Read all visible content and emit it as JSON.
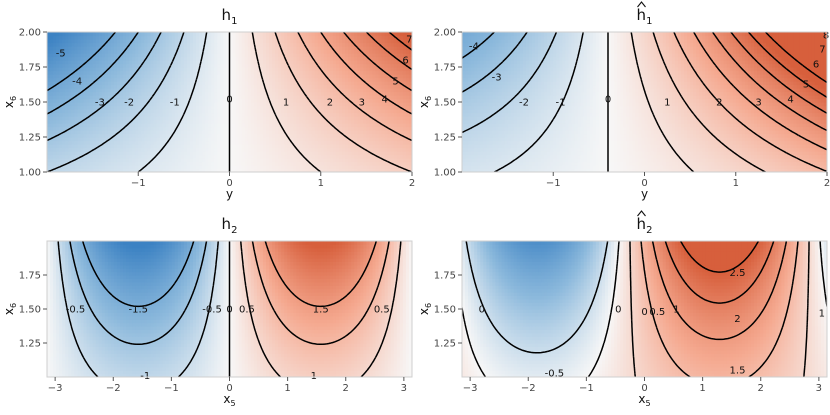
{
  "chart_data": [
    {
      "type": "heatmap",
      "title": "h",
      "title_sub": "1",
      "title_hat": false,
      "func": "h1_true",
      "xlabel": "y",
      "xlabel_sub": "",
      "ylabel": "x",
      "ylabel_sub": "6",
      "xlim": [
        -2,
        2
      ],
      "ylim": [
        1,
        2
      ],
      "xticks": [
        -1,
        0,
        1,
        2
      ],
      "xtick_labels": [
        "−1",
        "0",
        "1",
        "2"
      ],
      "yticks": [
        1,
        1.25,
        1.5,
        1.75,
        2
      ],
      "ytick_labels": [
        "1.00",
        "1.25",
        "1.50",
        "1.75",
        "2.00"
      ],
      "contour_levels": [
        -5,
        -4,
        -3,
        -2,
        -1,
        0,
        1,
        2,
        3,
        4,
        5,
        6,
        7
      ],
      "contour_label_positions": [
        {
          "text": "-5",
          "x": -1.85,
          "y": 1.85
        },
        {
          "text": "-4",
          "x": -1.67,
          "y": 1.65
        },
        {
          "text": "-3",
          "x": -1.42,
          "y": 1.5
        },
        {
          "text": "-2",
          "x": -1.1,
          "y": 1.5
        },
        {
          "text": "-1",
          "x": -0.6,
          "y": 1.5
        },
        {
          "text": "0",
          "x": 0,
          "y": 1.52
        },
        {
          "text": "1",
          "x": 0.62,
          "y": 1.5
        },
        {
          "text": "2",
          "x": 1.1,
          "y": 1.5
        },
        {
          "text": "3",
          "x": 1.45,
          "y": 1.5
        },
        {
          "text": "4",
          "x": 1.7,
          "y": 1.52
        },
        {
          "text": "5",
          "x": 1.82,
          "y": 1.65
        },
        {
          "text": "6",
          "x": 1.93,
          "y": 1.8
        },
        {
          "text": "7",
          "x": 1.97,
          "y": 1.95
        }
      ],
      "color_range": [
        -7.5,
        7.5
      ]
    },
    {
      "type": "heatmap",
      "title": "h",
      "title_sub": "1",
      "title_hat": true,
      "func": "h1_hat",
      "xlabel": "y",
      "xlabel_sub": "",
      "ylabel": "x",
      "ylabel_sub": "6",
      "xlim": [
        -2,
        2
      ],
      "ylim": [
        1,
        2
      ],
      "xticks": [
        -1,
        0,
        1,
        2
      ],
      "xtick_labels": [
        "−1",
        "0",
        "1",
        "2"
      ],
      "yticks": [
        1,
        1.25,
        1.5,
        1.75,
        2
      ],
      "ytick_labels": [
        "1.00",
        "1.25",
        "1.50",
        "1.75",
        "2.00"
      ],
      "contour_levels": [
        -4,
        -3,
        -2,
        -1,
        0,
        1,
        2,
        3,
        4,
        5,
        6,
        7,
        8
      ],
      "contour_label_positions": [
        {
          "text": "-4",
          "x": -1.87,
          "y": 1.9
        },
        {
          "text": "-3",
          "x": -1.62,
          "y": 1.68
        },
        {
          "text": "-2",
          "x": -1.32,
          "y": 1.5
        },
        {
          "text": "-1",
          "x": -0.92,
          "y": 1.5
        },
        {
          "text": "0",
          "x": -0.4,
          "y": 1.52
        },
        {
          "text": "1",
          "x": 0.25,
          "y": 1.5
        },
        {
          "text": "2",
          "x": 0.82,
          "y": 1.5
        },
        {
          "text": "3",
          "x": 1.25,
          "y": 1.5
        },
        {
          "text": "4",
          "x": 1.6,
          "y": 1.52
        },
        {
          "text": "5",
          "x": 1.77,
          "y": 1.63
        },
        {
          "text": "6",
          "x": 1.88,
          "y": 1.77
        },
        {
          "text": "7",
          "x": 1.95,
          "y": 1.88
        },
        {
          "text": "8",
          "x": 1.99,
          "y": 1.98
        }
      ],
      "color_range": [
        -7.5,
        7.5
      ]
    },
    {
      "type": "heatmap",
      "title": "h",
      "title_sub": "2",
      "title_hat": false,
      "func": "h2_true",
      "xlabel": "x",
      "xlabel_sub": "5",
      "ylabel": "x",
      "ylabel_sub": "6",
      "xlim": [
        -3.14,
        3.14
      ],
      "ylim": [
        1,
        2
      ],
      "xticks": [
        -3,
        -2,
        -1,
        0,
        1,
        2,
        3
      ],
      "xtick_labels": [
        "−3",
        "−2",
        "−1",
        "0",
        "1",
        "2",
        "3"
      ],
      "yticks": [
        1.25,
        1.5,
        1.75
      ],
      "ytick_labels": [
        "1.25",
        "1.50",
        "1.75"
      ],
      "contour_levels": [
        -1.5,
        -1,
        -0.5,
        0,
        0.5,
        1,
        1.5
      ],
      "contour_label_positions": [
        {
          "text": "-0.5",
          "x": -2.65,
          "y": 1.5
        },
        {
          "text": "-1.5",
          "x": -1.57,
          "y": 1.5
        },
        {
          "text": "-0.5",
          "x": -0.3,
          "y": 1.5
        },
        {
          "text": "0",
          "x": 0,
          "y": 1.5
        },
        {
          "text": "0.5",
          "x": 0.3,
          "y": 1.5
        },
        {
          "text": "1.5",
          "x": 1.57,
          "y": 1.5
        },
        {
          "text": "0.5",
          "x": 2.62,
          "y": 1.5
        },
        {
          "text": "-1",
          "x": -1.45,
          "y": 1.01
        },
        {
          "text": "1",
          "x": 1.45,
          "y": 1.01
        }
      ],
      "color_range": [
        -2.5,
        2.5
      ]
    },
    {
      "type": "heatmap",
      "title": "h",
      "title_sub": "2",
      "title_hat": true,
      "func": "h2_hat",
      "xlabel": "x",
      "xlabel_sub": "5",
      "ylabel": "x",
      "ylabel_sub": "6",
      "xlim": [
        -3.14,
        3.14
      ],
      "ylim": [
        1,
        2
      ],
      "xticks": [
        -3,
        -2,
        -1,
        0,
        1,
        2,
        3
      ],
      "xtick_labels": [
        "−3",
        "−2",
        "−1",
        "0",
        "1",
        "2",
        "3"
      ],
      "yticks": [
        1.25,
        1.5,
        1.75
      ],
      "ytick_labels": [
        "1.25",
        "1.50",
        "1.75"
      ],
      "contour_levels": [
        -0.5,
        0,
        0.5,
        1,
        1.5,
        2,
        2.5
      ],
      "contour_label_positions": [
        {
          "text": "0",
          "x": -2.8,
          "y": 1.5
        },
        {
          "text": "-0.5",
          "x": -1.55,
          "y": 1.03
        },
        {
          "text": "0",
          "x": -0.45,
          "y": 1.5
        },
        {
          "text": "0",
          "x": 0,
          "y": 1.48
        },
        {
          "text": "0.5",
          "x": 0.22,
          "y": 1.48
        },
        {
          "text": "1",
          "x": 0.55,
          "y": 1.5
        },
        {
          "text": "1.5",
          "x": 1.6,
          "y": 1.05
        },
        {
          "text": "2",
          "x": 1.6,
          "y": 1.43
        },
        {
          "text": "2.5",
          "x": 1.6,
          "y": 1.77
        },
        {
          "text": "1",
          "x": 3.05,
          "y": 1.47
        }
      ],
      "color_range": [
        -2.5,
        2.5
      ]
    }
  ]
}
